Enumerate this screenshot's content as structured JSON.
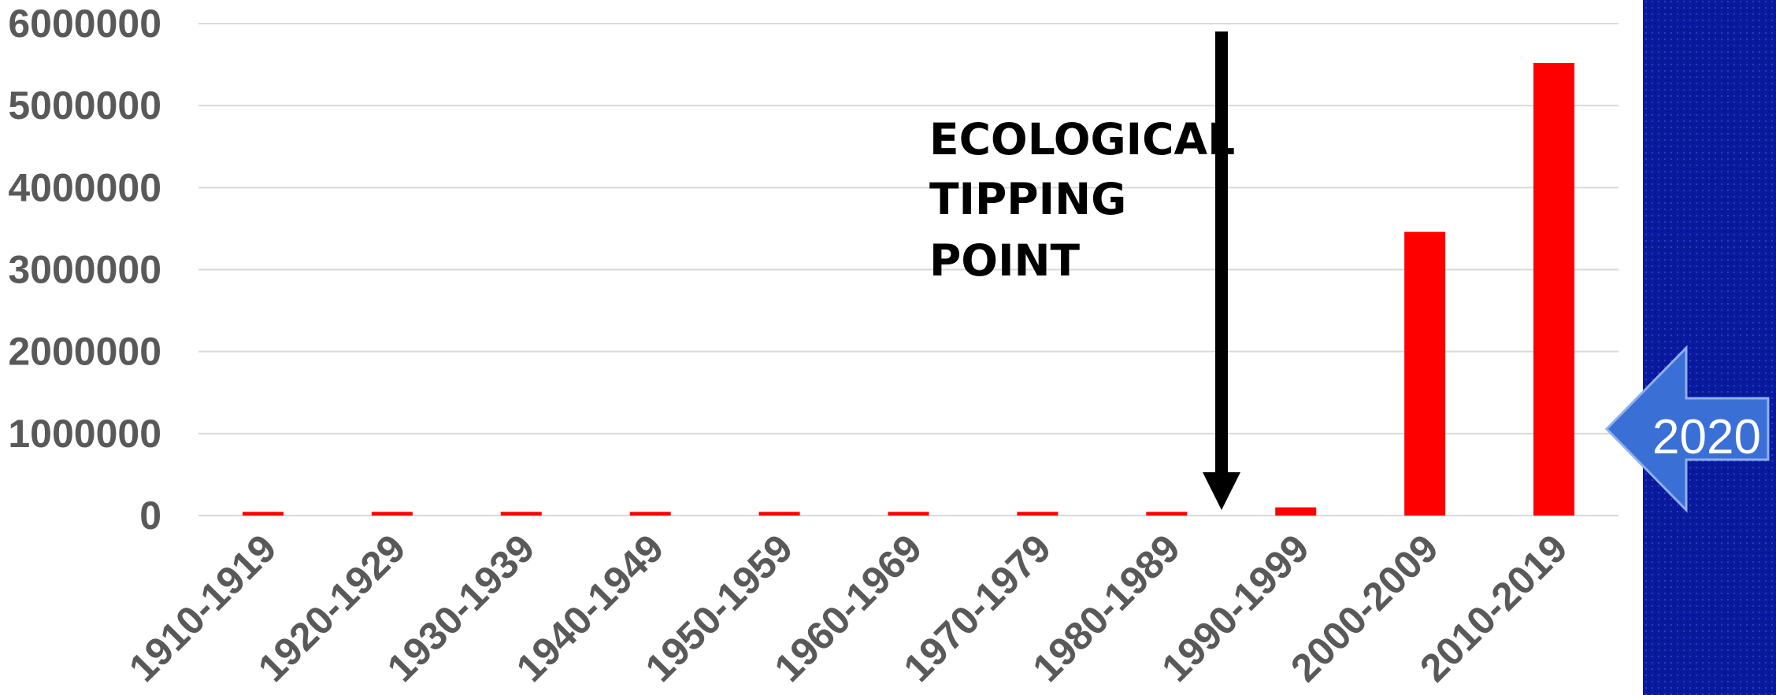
{
  "chart_data": {
    "type": "bar",
    "categories": [
      "1910-1919",
      "1920-1929",
      "1930-1939",
      "1940-1949",
      "1950-1959",
      "1960-1969",
      "1970-1979",
      "1980-1989",
      "1990-1999",
      "2000-2009",
      "2010-2019"
    ],
    "values": [
      45000,
      45000,
      45000,
      45000,
      45000,
      45000,
      45000,
      45000,
      100000,
      3460000,
      5520000
    ],
    "ylim": [
      0,
      6000000
    ],
    "yticks": [
      "0",
      "1000000",
      "2000000",
      "3000000",
      "4000000",
      "5000000",
      "6000000"
    ],
    "grid": true,
    "title": "",
    "xlabel": "",
    "ylabel": "",
    "bar_color": "#ff0000",
    "annotation": {
      "lines": [
        "ECOLOGICAL",
        "TIPPING",
        "POINT"
      ],
      "arrow_between_categories": [
        "1980-1989",
        "1990-1999"
      ]
    }
  },
  "side_panel": {
    "badge_label": "2020",
    "background_color": "#0a1a9e",
    "badge_color": "#3366cc"
  }
}
